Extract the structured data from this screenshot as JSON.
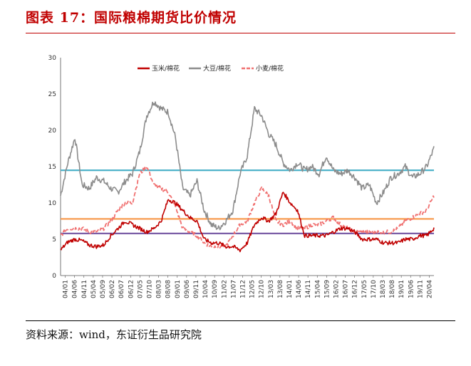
{
  "header": {
    "title": "图表 17：国际粮棉期货比价情况",
    "source": "资料来源：wind，东证衍生品研究院"
  },
  "chart_data": {
    "type": "line",
    "title": "",
    "xlabel": "",
    "ylabel": "",
    "ylim": [
      0,
      30
    ],
    "yticks": [
      0,
      5,
      10,
      15,
      20,
      25,
      30
    ],
    "x_tick_labels": [
      "04/01",
      "04/06",
      "04/11",
      "05/04",
      "05/09",
      "06/02",
      "06/07",
      "06/12",
      "07/05",
      "07/10",
      "08/03",
      "08/08",
      "09/01",
      "09/06",
      "09/11",
      "10/04",
      "10/09",
      "11/02",
      "11/07",
      "11/12",
      "12/05",
      "12/10",
      "13/03",
      "13/08",
      "14/01",
      "14/06",
      "14/11",
      "15/04",
      "15/09",
      "16/02",
      "16/07",
      "16/12",
      "17/05",
      "17/10",
      "18/03",
      "18/08",
      "19/01",
      "19/06",
      "19/11",
      "20/04"
    ],
    "legend_position": "top",
    "series": [
      {
        "name": "玉米/棉花",
        "color": "#c00000",
        "style": "solid",
        "values": [
          3.5,
          4.6,
          5.0,
          4.8,
          4.2,
          4.0,
          4.2,
          5.5,
          6.5,
          7.5,
          7.0,
          6.5,
          6.0,
          6.5,
          7.5,
          10.5,
          10.0,
          9.0,
          8.0,
          7.5,
          5.0,
          4.5,
          4.5,
          4.0,
          4.0,
          3.5,
          4.5,
          7.0,
          8.0,
          7.5,
          8.5,
          11.5,
          10.0,
          9.0,
          5.5,
          5.5,
          5.5,
          5.5,
          6.0,
          6.5,
          6.5,
          6.0,
          5.0,
          5.0,
          5.0,
          4.5,
          4.5,
          4.5,
          5.0,
          5.0,
          5.5,
          5.5,
          6.5
        ]
      },
      {
        "name": "大豆/棉花",
        "color": "#8c8c8c",
        "style": "solid",
        "values": [
          11.0,
          15.5,
          19.0,
          12.5,
          12.0,
          13.5,
          13.0,
          12.0,
          11.5,
          13.0,
          14.0,
          17.0,
          22.0,
          24.0,
          23.0,
          22.5,
          19.0,
          12.0,
          11.0,
          13.0,
          9.0,
          7.0,
          6.5,
          7.5,
          9.0,
          14.0,
          16.5,
          23.0,
          22.0,
          19.5,
          18.0,
          15.5,
          14.5,
          15.5,
          14.5,
          15.0,
          14.0,
          16.5,
          14.5,
          14.0,
          14.5,
          13.5,
          12.0,
          12.5,
          10.0,
          11.5,
          13.5,
          14.0,
          15.0,
          13.5,
          14.0,
          15.0,
          17.5
        ]
      },
      {
        "name": "小麦/棉花",
        "color": "#f07070",
        "style": "dashed",
        "values": [
          5.5,
          6.5,
          6.5,
          6.5,
          6.0,
          6.0,
          6.5,
          7.5,
          9.0,
          10.0,
          10.0,
          14.0,
          15.0,
          12.5,
          12.0,
          11.5,
          9.5,
          6.5,
          6.0,
          5.5,
          4.5,
          4.0,
          4.0,
          4.0,
          5.5,
          7.0,
          7.5,
          10.0,
          12.0,
          11.0,
          7.5,
          7.0,
          7.5,
          6.5,
          6.5,
          7.0,
          7.0,
          7.5,
          8.0,
          7.0,
          6.5,
          6.0,
          6.0,
          6.0,
          6.0,
          6.0,
          6.0,
          6.5,
          7.5,
          8.0,
          8.5,
          9.0,
          11.0
        ]
      },
      {
        "name": "",
        "color": "#4fb3c9",
        "style": "hline",
        "values": [
          14.5
        ]
      },
      {
        "name": "",
        "color": "#f79646",
        "style": "hline",
        "values": [
          7.8
        ]
      },
      {
        "name": "",
        "color": "#7b5ea7",
        "style": "hline",
        "values": [
          5.8
        ]
      }
    ]
  }
}
